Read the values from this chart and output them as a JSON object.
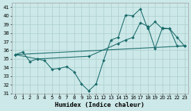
{
  "xlabel": "Humidex (Indice chaleur)",
  "background_color": "#cce8e8",
  "grid_color": "#aacccc",
  "line_color": "#1a6b6b",
  "xlim": [
    -0.5,
    23.5
  ],
  "ylim": [
    31,
    41.5
  ],
  "yticks": [
    31,
    32,
    33,
    34,
    35,
    36,
    37,
    38,
    39,
    40,
    41
  ],
  "xticks": [
    0,
    1,
    2,
    3,
    4,
    5,
    6,
    7,
    8,
    9,
    10,
    11,
    12,
    13,
    14,
    15,
    16,
    17,
    18,
    19,
    20,
    21,
    22,
    23
  ],
  "series1_x": [
    0,
    1,
    2,
    3,
    4,
    5,
    6,
    7,
    8,
    9,
    10,
    11,
    12,
    13,
    14,
    15,
    16,
    17,
    18,
    19,
    20,
    21,
    22,
    23
  ],
  "series1_y": [
    35.5,
    35.8,
    34.7,
    35.0,
    34.8,
    33.8,
    33.9,
    34.1,
    33.5,
    32.1,
    31.3,
    32.1,
    34.8,
    37.2,
    37.5,
    40.1,
    40.0,
    40.8,
    38.5,
    39.3,
    38.5,
    38.5,
    37.5,
    36.5
  ],
  "series2_x": [
    0,
    3,
    10,
    14,
    15,
    16,
    17,
    18,
    19,
    20,
    21,
    22,
    23
  ],
  "series2_y": [
    35.5,
    35.0,
    35.3,
    36.8,
    37.2,
    37.5,
    39.2,
    38.8,
    36.2,
    38.6,
    38.5,
    36.5,
    36.5
  ],
  "series3_x": [
    0,
    23
  ],
  "series3_y": [
    35.5,
    36.5
  ]
}
